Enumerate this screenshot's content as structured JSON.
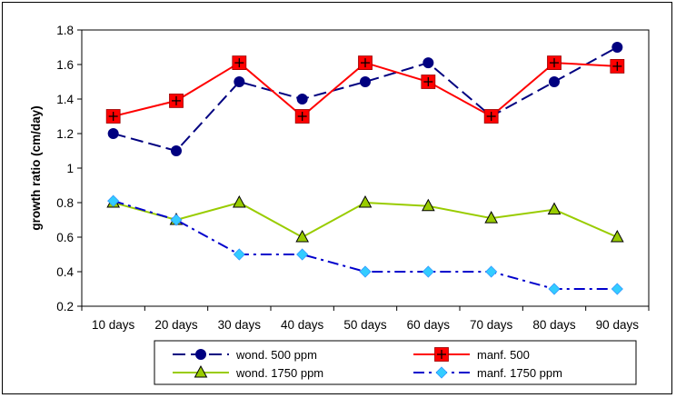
{
  "chart_data": {
    "type": "line",
    "title": "",
    "xlabel": "",
    "ylabel": "growth ratio (cm/day)",
    "categories": [
      "10 days",
      "20 days",
      "30 days",
      "40 days",
      "50 days",
      "60 days",
      "70 days",
      "80 days",
      "90 days"
    ],
    "ylim": [
      0.2,
      1.8
    ],
    "yticks": [
      "0.2",
      "0.4",
      "0.6",
      "0.8",
      "1",
      "1.2",
      "1.4",
      "1.6",
      "1.8"
    ],
    "grid": false,
    "legend_position": "bottom",
    "series": [
      {
        "name": "wond. 500 ppm",
        "values": [
          1.2,
          1.1,
          1.5,
          1.4,
          1.5,
          1.61,
          1.3,
          1.5,
          1.7
        ],
        "color": "#000080",
        "marker": "circle",
        "dash": "long-dash"
      },
      {
        "name": "manf. 500",
        "values": [
          1.3,
          1.39,
          1.61,
          1.3,
          1.61,
          1.5,
          1.3,
          1.61,
          1.59
        ],
        "color": "#ff0000",
        "marker": "square-cross",
        "dash": "solid"
      },
      {
        "name": "wond. 1750 ppm",
        "values": [
          0.8,
          0.7,
          0.8,
          0.6,
          0.8,
          0.78,
          0.71,
          0.76,
          0.6
        ],
        "color": "#99cc00",
        "marker": "triangle",
        "dash": "solid"
      },
      {
        "name": "manf. 1750 ppm",
        "values": [
          0.81,
          0.7,
          0.5,
          0.5,
          0.4,
          0.4,
          0.4,
          0.3,
          0.3
        ],
        "color": "#0000cc",
        "marker": "diamond",
        "dash": "dash-dot"
      }
    ]
  }
}
